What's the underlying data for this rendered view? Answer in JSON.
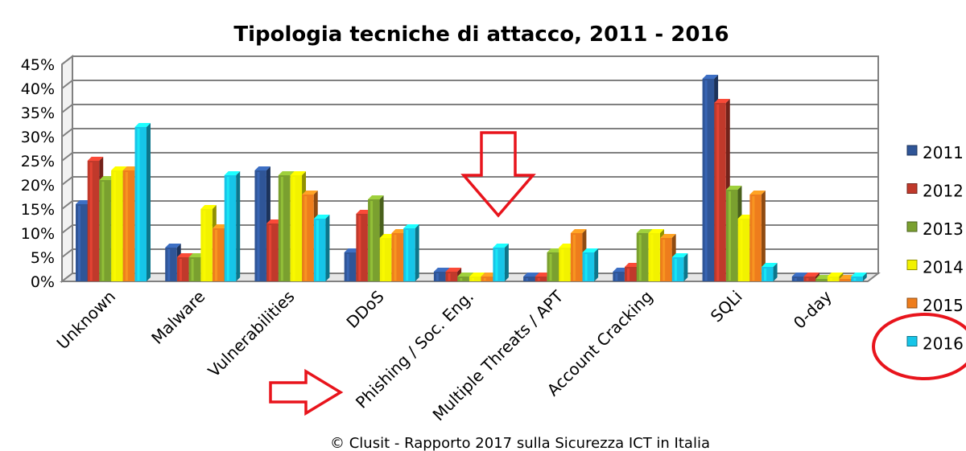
{
  "chart_data": {
    "type": "bar",
    "title": "Tipologia tecniche di attacco, 2011 - 2016",
    "categories": [
      "Unknown",
      "Malware",
      "Vulnerabilities",
      "DDoS",
      "Phishing / Soc. Eng.",
      "Multiple Threats / APT",
      "Account Cracking",
      "SQLi",
      "0-day"
    ],
    "series": [
      {
        "name": "2011",
        "color": "#2f5597",
        "values": [
          16,
          7,
          23,
          6,
          2,
          1,
          2,
          42,
          1
        ]
      },
      {
        "name": "2012",
        "color": "#c0392b",
        "values": [
          25,
          5,
          12,
          14,
          2,
          1,
          3,
          37,
          1
        ]
      },
      {
        "name": "2013",
        "color": "#7aa02f",
        "values": [
          21,
          5,
          22,
          17,
          1,
          6,
          10,
          19,
          0.5
        ]
      },
      {
        "name": "2014",
        "color": "#f2f200",
        "values": [
          23,
          15,
          22,
          9,
          1,
          7,
          10,
          13,
          1
        ]
      },
      {
        "name": "2015",
        "color": "#ee7d1c",
        "values": [
          23,
          11,
          18,
          10,
          1,
          10,
          9,
          18,
          0.5
        ]
      },
      {
        "name": "2016",
        "color": "#16c5e8",
        "values": [
          32,
          22,
          13,
          11,
          7,
          6,
          5,
          3,
          1
        ]
      }
    ],
    "yticks": [
      "0%",
      "5%",
      "10%",
      "15%",
      "20%",
      "25%",
      "30%",
      "35%",
      "40%",
      "45%"
    ],
    "ylim": [
      0,
      45
    ],
    "grid": true,
    "legend": "right",
    "footer": "© Clusit - Rapporto 2017 sulla Sicurezza ICT in Italia"
  }
}
